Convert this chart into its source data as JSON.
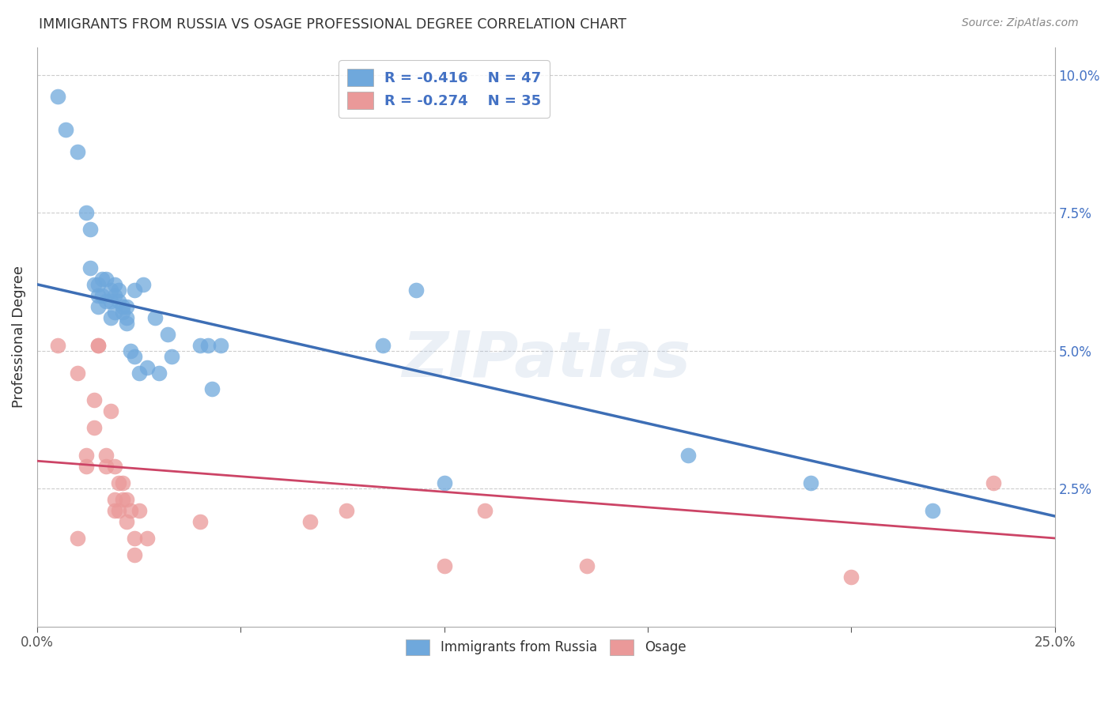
{
  "title": "IMMIGRANTS FROM RUSSIA VS OSAGE PROFESSIONAL DEGREE CORRELATION CHART",
  "source": "Source: ZipAtlas.com",
  "ylabel": "Professional Degree",
  "right_yticks": [
    "10.0%",
    "7.5%",
    "5.0%",
    "2.5%"
  ],
  "right_ytick_vals": [
    0.1,
    0.075,
    0.05,
    0.025
  ],
  "legend_blue_label": "Immigrants from Russia",
  "legend_pink_label": "Osage",
  "legend_blue_r": "-0.416",
  "legend_blue_n": "47",
  "legend_pink_r": "-0.274",
  "legend_pink_n": "35",
  "blue_color": "#6fa8dc",
  "pink_color": "#ea9999",
  "blue_line_color": "#3d6eb5",
  "pink_line_color": "#cc4466",
  "watermark": "ZIPatlas",
  "blue_scatter_x": [
    0.005,
    0.007,
    0.01,
    0.012,
    0.013,
    0.013,
    0.014,
    0.015,
    0.015,
    0.015,
    0.016,
    0.016,
    0.017,
    0.017,
    0.018,
    0.018,
    0.018,
    0.019,
    0.019,
    0.019,
    0.02,
    0.02,
    0.021,
    0.021,
    0.022,
    0.022,
    0.022,
    0.023,
    0.024,
    0.024,
    0.025,
    0.026,
    0.027,
    0.029,
    0.03,
    0.032,
    0.033,
    0.04,
    0.042,
    0.043,
    0.045,
    0.085,
    0.093,
    0.1,
    0.16,
    0.19,
    0.22
  ],
  "blue_scatter_y": [
    0.096,
    0.09,
    0.086,
    0.075,
    0.072,
    0.065,
    0.062,
    0.062,
    0.06,
    0.058,
    0.063,
    0.06,
    0.063,
    0.059,
    0.061,
    0.059,
    0.056,
    0.062,
    0.06,
    0.057,
    0.061,
    0.059,
    0.058,
    0.057,
    0.056,
    0.055,
    0.058,
    0.05,
    0.061,
    0.049,
    0.046,
    0.062,
    0.047,
    0.056,
    0.046,
    0.053,
    0.049,
    0.051,
    0.051,
    0.043,
    0.051,
    0.051,
    0.061,
    0.026,
    0.031,
    0.026,
    0.021
  ],
  "pink_scatter_x": [
    0.005,
    0.01,
    0.012,
    0.012,
    0.014,
    0.014,
    0.015,
    0.015,
    0.017,
    0.017,
    0.018,
    0.019,
    0.019,
    0.019,
    0.02,
    0.02,
    0.021,
    0.021,
    0.022,
    0.022,
    0.023,
    0.024,
    0.024,
    0.025,
    0.027,
    0.04,
    0.067,
    0.076,
    0.1,
    0.11,
    0.135,
    0.2,
    0.235,
    0.252,
    0.01
  ],
  "pink_scatter_y": [
    0.051,
    0.046,
    0.031,
    0.029,
    0.041,
    0.036,
    0.051,
    0.051,
    0.031,
    0.029,
    0.039,
    0.029,
    0.023,
    0.021,
    0.026,
    0.021,
    0.026,
    0.023,
    0.023,
    0.019,
    0.021,
    0.016,
    0.013,
    0.021,
    0.016,
    0.019,
    0.019,
    0.021,
    0.011,
    0.021,
    0.011,
    0.009,
    0.026,
    0.026,
    0.016
  ],
  "xmin": 0.0,
  "xmax": 0.25,
  "ymin": 0.0,
  "ymax": 0.105,
  "blue_line_x0": 0.0,
  "blue_line_y0": 0.062,
  "blue_line_x1": 0.25,
  "blue_line_y1": 0.02,
  "pink_line_x0": 0.0,
  "pink_line_y0": 0.03,
  "pink_line_x1": 0.25,
  "pink_line_y1": 0.016
}
